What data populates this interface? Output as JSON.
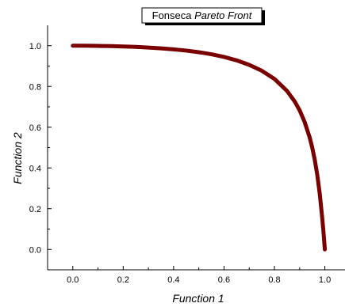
{
  "chart_data": {
    "type": "line",
    "title_prefix": "Fonseca ",
    "title_emph": "Pareto Front",
    "xlabel": "Function 1",
    "ylabel": "Function 2",
    "xlim": [
      -0.1,
      1.08
    ],
    "ylim": [
      -0.1,
      1.1
    ],
    "xticks": [
      0.0,
      0.2,
      0.4,
      0.6,
      0.8,
      1.0
    ],
    "yticks": [
      0.0,
      0.2,
      0.4,
      0.6,
      0.8,
      1.0
    ],
    "xtick_labels": [
      "0.0",
      "0.2",
      "0.4",
      "0.6",
      "0.8",
      "1.0"
    ],
    "ytick_labels": [
      "0.0",
      "0.2",
      "0.4",
      "0.6",
      "0.8",
      "1.0"
    ],
    "grid": false,
    "colors": {
      "line": "#7a0000"
    },
    "series": [
      {
        "x": [
          0.0,
          0.05,
          0.1,
          0.15,
          0.2,
          0.25,
          0.3,
          0.35,
          0.4,
          0.45,
          0.5,
          0.55,
          0.6,
          0.65,
          0.7,
          0.75,
          0.8,
          0.85,
          0.88,
          0.9,
          0.92,
          0.94,
          0.95,
          0.96,
          0.97,
          0.98,
          0.99,
          0.995,
          1.0
        ],
        "y": [
          1.0,
          1.0,
          0.999,
          0.998,
          0.996,
          0.994,
          0.991,
          0.987,
          0.982,
          0.976,
          0.968,
          0.958,
          0.945,
          0.928,
          0.906,
          0.877,
          0.837,
          0.778,
          0.727,
          0.683,
          0.625,
          0.549,
          0.5,
          0.44,
          0.366,
          0.271,
          0.15,
          0.08,
          0.0
        ]
      }
    ]
  }
}
